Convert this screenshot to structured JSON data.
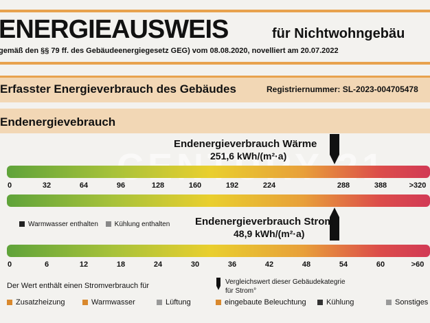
{
  "header": {
    "title": "ENERGIEAUSWEIS",
    "subtitle": "für Nichtwohngebäu",
    "legal": "gemäß den §§ 79 ff. des Gebäudeenergiegesetz GEG) vom 08.08.2020, novelliert am 20.07.2022"
  },
  "section": {
    "title": "Erfasster Energieverbrauch des Gebäudes",
    "registry": "Registriernummer: SL-2023-004705478"
  },
  "subsection": {
    "title": "Endenergievebrauch"
  },
  "watermark": "CENTURY 21",
  "heat": {
    "label": "Endenergieverbrauch Wärme",
    "value": "251,6 kWh/(m²·a)",
    "ticks": [
      0,
      32,
      64,
      96,
      128,
      160,
      192,
      224,
      288,
      388,
      ">320"
    ]
  },
  "legend": {
    "items": [
      "Warmwasser enthalten",
      "Kühlung enthalten"
    ]
  },
  "power": {
    "label": "Endenergieverbrauch Strom",
    "value": "48,9 kWh/(m²·a)",
    "ticks": [
      0,
      6,
      12,
      18,
      24,
      30,
      36,
      42,
      48,
      54,
      60,
      ">60"
    ]
  },
  "footer": {
    "note": "Der Wert enthält einen Stromverbrauch für",
    "compare": [
      "Vergleichswert dieser Gebäudekategrie",
      "für Strom°"
    ],
    "items": [
      "Zusatzheizung",
      "Warmwasser",
      "Lüftung",
      "eingebaute Beleuchtung",
      "Kühlung",
      "Sonstiges"
    ]
  }
}
